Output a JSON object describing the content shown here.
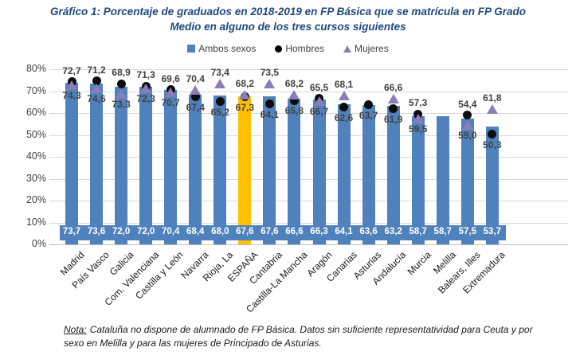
{
  "title": {
    "line1": "Gráfico 1: Porcentaje de graduados en 2018-2019 en FP Básica que se matrícula en FP Grado",
    "line2": "Medio en alguno de los tres cursos siguientes"
  },
  "legend": {
    "items": [
      {
        "label": "Ambos sexos",
        "marker": "square-icon",
        "color": "#4F81BD"
      },
      {
        "label": "Hombres",
        "marker": "circle-icon",
        "color": "#000000"
      },
      {
        "label": "Mujeres",
        "marker": "triangle-icon",
        "color": "#8C7DB8"
      }
    ]
  },
  "chart_data": {
    "type": "bar",
    "title": "Gráfico 1: Porcentaje de graduados en 2018-2019 en FP Básica que se matrícula en FP Grado Medio en alguno de los tres cursos siguientes",
    "xlabel": "",
    "ylabel": "",
    "ylim": [
      0,
      80
    ],
    "y_ticks": [
      "0%",
      "10%",
      "20%",
      "30%",
      "40%",
      "50%",
      "60%",
      "70%",
      "80%"
    ],
    "grid": true,
    "legend_position": "top",
    "decimal_separator": ",",
    "categories": [
      "Madrid",
      "País Vasco",
      "Galicia",
      "Com. Valenciana",
      "Castilla y León",
      "Navarra",
      "Rioja, La",
      "ESPAÑA",
      "Cantabria",
      "Castilla-La Mancha",
      "Aragón",
      "Canarias",
      "Asturias",
      "Andalucía",
      "Murcia",
      "Melilla",
      "Balears, Illes",
      "Extremadura"
    ],
    "series": [
      {
        "name": "Ambos sexos",
        "type": "bar",
        "color": "#4F81BD",
        "values": [
          73.7,
          73.6,
          72.0,
          72.0,
          70.4,
          68.4,
          68.0,
          67.6,
          67.6,
          66.6,
          66.3,
          64.1,
          63.6,
          63.2,
          58.7,
          58.7,
          57.5,
          53.7
        ]
      },
      {
        "name": "Hombres",
        "type": "point",
        "marker": "circle",
        "color": "#000000",
        "values": [
          74.3,
          74.6,
          73.3,
          72.3,
          70.7,
          67.4,
          65.2,
          67.3,
          64.1,
          65.8,
          66.7,
          62.6,
          63.7,
          61.9,
          59.5,
          null,
          59.0,
          50.3
        ]
      },
      {
        "name": "Mujeres",
        "type": "point",
        "marker": "triangle",
        "color": "#8C7DB8",
        "values": [
          72.7,
          71.2,
          68.9,
          71.3,
          69.6,
          70.4,
          73.4,
          68.2,
          73.5,
          68.2,
          65.5,
          68.1,
          null,
          66.6,
          57.3,
          null,
          54.4,
          61.8
        ]
      }
    ],
    "highlight": {
      "category": "ESPAÑA",
      "bar_color": "#FFC000"
    }
  },
  "note": {
    "label": "Nota:",
    "line1": "Cataluña no dispone de alumnado de FP Básica. Datos sin suficiente representatividad para Ceuta y por",
    "line2": "sexo en Melilla y para las mujeres de Principado de Asturias."
  }
}
